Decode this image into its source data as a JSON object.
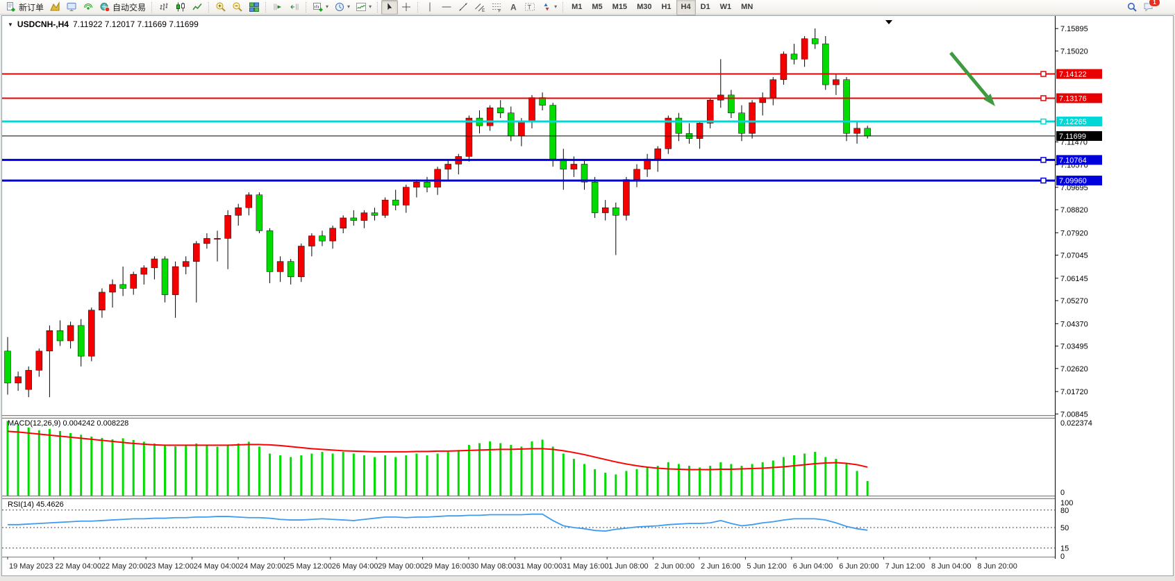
{
  "toolbar": {
    "badge_count": "1",
    "groups": [
      {
        "items": [
          {
            "name": "new-order",
            "icon": "new-order-icon",
            "label": "新订单"
          },
          {
            "name": "charts",
            "icon": "charts-icon"
          },
          {
            "name": "terminal",
            "icon": "terminal-icon"
          },
          {
            "name": "signals",
            "icon": "signals-icon"
          },
          {
            "name": "autotrade",
            "icon": "autotrade-icon",
            "label": "自动交易"
          }
        ]
      },
      {
        "items": [
          {
            "name": "bar-chart-mode",
            "icon": "bar-chart-icon"
          },
          {
            "name": "candle-chart-mode",
            "icon": "candle-chart-icon"
          },
          {
            "name": "line-chart-mode",
            "icon": "line-chart-icon"
          }
        ]
      },
      {
        "items": [
          {
            "name": "zoom-in",
            "icon": "zoom-in-icon"
          },
          {
            "name": "zoom-out",
            "icon": "zoom-out-icon"
          },
          {
            "name": "tile-windows",
            "icon": "tile-windows-icon"
          }
        ]
      },
      {
        "items": [
          {
            "name": "auto-scroll",
            "icon": "auto-scroll-icon"
          },
          {
            "name": "chart-shift",
            "icon": "chart-shift-icon"
          }
        ]
      },
      {
        "items": [
          {
            "name": "new-chart",
            "icon": "new-chart-icon",
            "dropdown": true
          },
          {
            "name": "periods",
            "icon": "period-icon",
            "dropdown": true
          },
          {
            "name": "indicators",
            "icon": "indicators-icon",
            "dropdown": true
          }
        ]
      },
      {
        "items": [
          {
            "name": "cursor",
            "icon": "cursor-icon",
            "active": true
          },
          {
            "name": "crosshair",
            "icon": "crosshair-icon"
          }
        ]
      },
      {
        "items": [
          {
            "name": "vertical-line",
            "icon": "vline-icon"
          },
          {
            "name": "horizontal-line",
            "icon": "hline-icon"
          },
          {
            "name": "trendline",
            "icon": "trendline-icon"
          },
          {
            "name": "equidistant-channel",
            "icon": "channel-icon"
          },
          {
            "name": "fibonacci",
            "icon": "fibo-icon"
          },
          {
            "name": "text",
            "icon": "text-icon"
          },
          {
            "name": "text-label",
            "icon": "label-icon"
          },
          {
            "name": "arrows",
            "icon": "arrows-icon",
            "dropdown": true
          }
        ]
      }
    ],
    "timeframes": [
      "M1",
      "M5",
      "M15",
      "M30",
      "H1",
      "H4",
      "D1",
      "W1",
      "MN"
    ],
    "active_timeframe": "H4"
  },
  "chart": {
    "title": "USDCNH-,H4",
    "ohlc": "7.11922 7.12017 7.11669 7.11699"
  },
  "colors": {
    "up": "#f40000",
    "down": "#00dc00",
    "wick": "#000000",
    "macd_hist": "#00dc00",
    "macd_signal": "#ff0000",
    "rsi_line": "#3e9bef",
    "line_red": "#e80000",
    "line_cyan": "#00d8d8",
    "line_blue": "#0000dc",
    "current_price": "#000000",
    "arrow": "#3f9b3f",
    "tag_text": "#ffffff"
  },
  "chart_data": [
    {
      "type": "candlestick",
      "title": "USDCNH-,H4",
      "current_bar": {
        "open": "7.11922",
        "high": "7.12017",
        "low": "7.11669",
        "close": "7.11699"
      },
      "ylim": [
        7.008,
        7.1598
      ],
      "y_ticks": [
        "7.15895",
        "7.15020",
        "7.11470",
        "7.10570",
        "7.09695",
        "7.08820",
        "7.07920",
        "7.07045",
        "7.06145",
        "7.05270",
        "7.04370",
        "7.03495",
        "7.02620",
        "7.01720",
        "7.00845"
      ],
      "x_labels": [
        "19 May 2023",
        "22 May 04:00",
        "22 May 20:00",
        "23 May 12:00",
        "24 May 04:00",
        "24 May 20:00",
        "25 May 12:00",
        "26 May 04:00",
        "29 May 00:00",
        "29 May 16:00",
        "30 May 08:00",
        "31 May 00:00",
        "31 May 16:00",
        "1 Jun 08:00",
        "2 Jun 00:00",
        "2 Jun 16:00",
        "5 Jun 12:00",
        "6 Jun 04:00",
        "6 Jun 20:00",
        "7 Jun 12:00",
        "8 Jun 04:00",
        "8 Jun 20:00"
      ],
      "horizontal_lines": [
        {
          "price": 7.14122,
          "label": "7.14122",
          "color_key": "line_red",
          "width": 2,
          "handle": true
        },
        {
          "price": 7.13176,
          "label": "7.13176",
          "color_key": "line_red",
          "width": 2,
          "handle": true
        },
        {
          "price": 7.12265,
          "label": "7.12265",
          "color_key": "line_cyan",
          "width": 3,
          "handle": true
        },
        {
          "price": 7.11699,
          "label": "7.11699",
          "color_key": "current_price",
          "width": 1,
          "handle": false
        },
        {
          "price": 7.10764,
          "label": "7.10764",
          "color_key": "line_blue",
          "width": 3,
          "handle": true
        },
        {
          "price": 7.0996,
          "label": "7.09960",
          "color_key": "line_blue",
          "width": 3,
          "handle": true
        }
      ],
      "annotations": [
        {
          "type": "arrow",
          "direction": "down-right",
          "color_key": "arrow"
        }
      ],
      "candles": [
        [
          7.033,
          7.0385,
          7.016,
          7.0205
        ],
        [
          7.0205,
          7.025,
          7.0175,
          7.023
        ],
        [
          7.018,
          7.027,
          7.015,
          7.0255
        ],
        [
          7.0255,
          7.034,
          7.023,
          7.033
        ],
        [
          7.033,
          7.043,
          7.015,
          7.041
        ],
        [
          7.041,
          7.045,
          7.035,
          7.037
        ],
        [
          7.037,
          7.0445,
          7.034,
          7.043
        ],
        [
          7.043,
          7.0455,
          7.027,
          7.031
        ],
        [
          7.031,
          7.05,
          7.029,
          7.049
        ],
        [
          7.049,
          7.0575,
          7.046,
          7.056
        ],
        [
          7.056,
          7.061,
          7.05,
          7.059
        ],
        [
          7.059,
          7.066,
          7.0545,
          7.0575
        ],
        [
          7.0575,
          7.064,
          7.055,
          7.063
        ],
        [
          7.063,
          7.0665,
          7.059,
          7.0655
        ],
        [
          7.0655,
          7.07,
          7.061,
          7.069
        ],
        [
          7.069,
          7.07,
          7.052,
          7.055
        ],
        [
          7.055,
          7.068,
          7.046,
          7.066
        ],
        [
          7.066,
          7.07,
          7.063,
          7.068
        ],
        [
          7.068,
          7.076,
          7.052,
          7.075
        ],
        [
          7.075,
          7.079,
          7.073,
          7.077
        ],
        [
          7.077,
          7.08,
          7.068,
          7.077
        ],
        [
          7.077,
          7.088,
          7.065,
          7.086
        ],
        [
          7.086,
          7.0905,
          7.082,
          7.089
        ],
        [
          7.089,
          7.095,
          7.086,
          7.094
        ],
        [
          7.094,
          7.095,
          7.079,
          7.08
        ],
        [
          7.08,
          7.081,
          7.0595,
          7.064
        ],
        [
          7.064,
          7.07,
          7.06,
          7.068
        ],
        [
          7.068,
          7.069,
          7.059,
          7.062
        ],
        [
          7.062,
          7.075,
          7.06,
          7.074
        ],
        [
          7.074,
          7.079,
          7.07,
          7.078
        ],
        [
          7.078,
          7.08,
          7.074,
          7.076
        ],
        [
          7.076,
          7.082,
          7.073,
          7.081
        ],
        [
          7.081,
          7.086,
          7.079,
          7.085
        ],
        [
          7.085,
          7.088,
          7.082,
          7.084
        ],
        [
          7.084,
          7.088,
          7.081,
          7.087
        ],
        [
          7.087,
          7.089,
          7.084,
          7.086
        ],
        [
          7.086,
          7.093,
          7.085,
          7.092
        ],
        [
          7.092,
          7.096,
          7.088,
          7.09
        ],
        [
          7.09,
          7.098,
          7.087,
          7.097
        ],
        [
          7.097,
          7.1,
          7.093,
          7.099
        ],
        [
          7.099,
          7.101,
          7.095,
          7.097
        ],
        [
          7.097,
          7.105,
          7.094,
          7.104
        ],
        [
          7.104,
          7.108,
          7.1,
          7.106
        ],
        [
          7.106,
          7.11,
          7.102,
          7.109
        ],
        [
          7.109,
          7.125,
          7.107,
          7.124
        ],
        [
          7.124,
          7.127,
          7.118,
          7.121
        ],
        [
          7.121,
          7.129,
          7.119,
          7.128
        ],
        [
          7.128,
          7.131,
          7.124,
          7.126
        ],
        [
          7.126,
          7.1285,
          7.115,
          7.117
        ],
        [
          7.117,
          7.124,
          7.113,
          7.123
        ],
        [
          7.123,
          7.133,
          7.12,
          7.132
        ],
        [
          7.132,
          7.134,
          7.127,
          7.129
        ],
        [
          7.129,
          7.13,
          7.105,
          7.108
        ],
        [
          7.108,
          7.112,
          7.096,
          7.104
        ],
        [
          7.104,
          7.109,
          7.101,
          7.106
        ],
        [
          7.106,
          7.108,
          7.096,
          7.099
        ],
        [
          7.099,
          7.101,
          7.085,
          7.087
        ],
        [
          7.087,
          7.092,
          7.084,
          7.089
        ],
        [
          7.089,
          7.091,
          7.0705,
          7.086
        ],
        [
          7.086,
          7.101,
          7.084,
          7.1
        ],
        [
          7.1,
          7.106,
          7.097,
          7.104
        ],
        [
          7.104,
          7.11,
          7.101,
          7.108
        ],
        [
          7.108,
          7.113,
          7.103,
          7.112
        ],
        [
          7.112,
          7.125,
          7.11,
          7.124
        ],
        [
          7.124,
          7.126,
          7.115,
          7.118
        ],
        [
          7.118,
          7.122,
          7.114,
          7.116
        ],
        [
          7.116,
          7.123,
          7.112,
          7.122
        ],
        [
          7.122,
          7.132,
          7.12,
          7.131
        ],
        [
          7.131,
          7.147,
          7.128,
          7.133
        ],
        [
          7.133,
          7.135,
          7.124,
          7.126
        ],
        [
          7.126,
          7.129,
          7.115,
          7.118
        ],
        [
          7.118,
          7.131,
          7.116,
          7.13
        ],
        [
          7.13,
          7.134,
          7.125,
          7.132
        ],
        [
          7.132,
          7.14,
          7.129,
          7.139
        ],
        [
          7.139,
          7.15,
          7.137,
          7.149
        ],
        [
          7.149,
          7.153,
          7.145,
          7.147
        ],
        [
          7.147,
          7.156,
          7.144,
          7.155
        ],
        [
          7.155,
          7.159,
          7.151,
          7.153
        ],
        [
          7.153,
          7.156,
          7.135,
          7.137
        ],
        [
          7.137,
          7.141,
          7.133,
          7.139
        ],
        [
          7.139,
          7.14,
          7.115,
          7.118
        ],
        [
          7.118,
          7.123,
          7.114,
          7.12
        ],
        [
          7.12,
          7.121,
          7.116,
          7.117
        ]
      ]
    },
    {
      "type": "bar",
      "name": "MACD(12,26,9)",
      "current_values": "0.004242 0.008228",
      "ylim": [
        0,
        0.022374
      ],
      "scale_labels": [
        "0.022374",
        "0"
      ],
      "histogram": [
        0.0215,
        0.0205,
        0.0196,
        0.0188,
        0.0192,
        0.0186,
        0.018,
        0.0175,
        0.017,
        0.0166,
        0.0162,
        0.0165,
        0.016,
        0.0155,
        0.015,
        0.0146,
        0.0142,
        0.0146,
        0.015,
        0.0146,
        0.0141,
        0.0146,
        0.015,
        0.0155,
        0.0141,
        0.0121,
        0.0116,
        0.0111,
        0.0116,
        0.0121,
        0.0126,
        0.0121,
        0.0126,
        0.0121,
        0.0116,
        0.0111,
        0.0116,
        0.0111,
        0.0116,
        0.0121,
        0.0116,
        0.0121,
        0.0126,
        0.0131,
        0.0146,
        0.0151,
        0.0156,
        0.0151,
        0.0146,
        0.0141,
        0.0156,
        0.0161,
        0.0141,
        0.0121,
        0.0106,
        0.0091,
        0.0076,
        0.0066,
        0.0061,
        0.0071,
        0.0076,
        0.0081,
        0.0086,
        0.0096,
        0.0091,
        0.0086,
        0.0081,
        0.0086,
        0.0096,
        0.0091,
        0.0086,
        0.0091,
        0.0096,
        0.0101,
        0.0111,
        0.0116,
        0.0121,
        0.0126,
        0.0111,
        0.0106,
        0.0091,
        0.0071,
        0.0042
      ],
      "signal": [
        0.0185,
        0.0183,
        0.018,
        0.0177,
        0.0174,
        0.0171,
        0.0168,
        0.0165,
        0.0162,
        0.0159,
        0.0156,
        0.0153,
        0.015,
        0.0148,
        0.0146,
        0.0145,
        0.0145,
        0.0145,
        0.0145,
        0.0145,
        0.0145,
        0.0145,
        0.0146,
        0.0147,
        0.0147,
        0.0146,
        0.0144,
        0.0141,
        0.0138,
        0.0135,
        0.0133,
        0.0131,
        0.0129,
        0.0128,
        0.0127,
        0.0126,
        0.0126,
        0.0126,
        0.0126,
        0.0127,
        0.0127,
        0.0128,
        0.0128,
        0.0129,
        0.013,
        0.0131,
        0.0132,
        0.0133,
        0.0133,
        0.0134,
        0.0135,
        0.0135,
        0.0133,
        0.0129,
        0.0124,
        0.0118,
        0.0111,
        0.0104,
        0.0097,
        0.0091,
        0.0086,
        0.0082,
        0.0079,
        0.0077,
        0.0076,
        0.0075,
        0.0075,
        0.0075,
        0.0076,
        0.0076,
        0.0077,
        0.0078,
        0.0079,
        0.0081,
        0.0083,
        0.0086,
        0.0089,
        0.0092,
        0.0094,
        0.0095,
        0.0093,
        0.0089,
        0.0082
      ]
    },
    {
      "type": "line",
      "name": "RSI(14)",
      "current_value": "45.4626",
      "ylim": [
        0,
        100
      ],
      "levels": [
        80,
        50,
        15
      ],
      "scale_labels": [
        "100",
        "80",
        "50",
        "15",
        "0"
      ],
      "values": [
        55,
        55,
        56,
        57,
        58,
        59,
        60,
        61,
        61,
        62,
        63,
        64,
        65,
        65,
        66,
        66,
        67,
        67,
        68,
        68,
        69,
        69,
        68,
        67,
        67,
        66,
        64,
        63,
        63,
        64,
        65,
        64,
        63,
        62,
        64,
        66,
        68,
        68,
        67,
        68,
        68,
        69,
        70,
        70,
        71,
        71,
        72,
        72,
        72,
        72,
        73,
        73,
        62,
        53,
        50,
        48,
        45,
        44,
        47,
        49,
        51,
        52,
        53,
        55,
        56,
        57,
        57,
        58,
        62,
        57,
        53,
        55,
        58,
        60,
        63,
        65,
        65,
        65,
        63,
        58,
        52,
        48,
        45.46
      ]
    }
  ]
}
